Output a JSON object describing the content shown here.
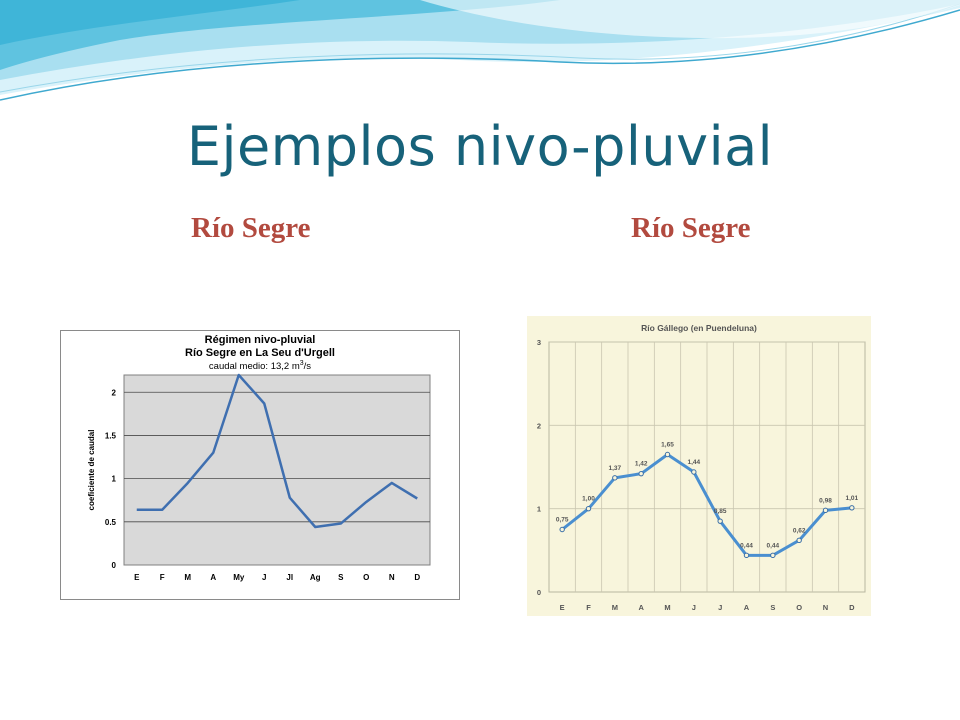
{
  "slide": {
    "title": "Ejemplos nivo-pluvial",
    "subtitle_left": "Río Segre",
    "subtitle_right": "Río Segre"
  },
  "colors": {
    "title": "#17627a",
    "subtitle": "#b24a3f",
    "wave_light": "#a9dff0",
    "wave_dark": "#3fb5d8",
    "line": "#3f6fb0"
  },
  "chart_data": [
    {
      "type": "line",
      "title": "Régimen nivo-pluvial",
      "subtitle": "Río Segre en La Seu d'Urgell",
      "note": "caudal medio: 13,2 m3/s",
      "note_main": "caudal medio: 13,2 m",
      "note_sup": "3",
      "note_tail": "/s",
      "ylabel": "coeficiente de caudal",
      "xlabel": "",
      "categories": [
        "E",
        "F",
        "M",
        "A",
        "My",
        "J",
        "Jl",
        "Ag",
        "S",
        "O",
        "N",
        "D"
      ],
      "yticks": [
        "0",
        "0.5",
        "1",
        "1.5",
        "2"
      ],
      "ylim": [
        0,
        2.2
      ],
      "grid": true,
      "series": [
        {
          "values": [
            0.64,
            0.64,
            0.95,
            1.3,
            2.2,
            1.87,
            0.78,
            0.44,
            0.48,
            0.73,
            0.95,
            0.77
          ]
        }
      ]
    },
    {
      "type": "line",
      "title": "Río Gállego (en Puendeluna)",
      "xlabel": "",
      "ylabel": "",
      "categories": [
        "E",
        "F",
        "M",
        "A",
        "M",
        "J",
        "J",
        "A",
        "S",
        "O",
        "N",
        "D"
      ],
      "yticks": [
        "0",
        "1",
        "2",
        "3"
      ],
      "ylim": [
        0,
        3
      ],
      "grid": true,
      "series": [
        {
          "values": [
            0.75,
            1.0,
            1.37,
            1.42,
            1.65,
            1.44,
            0.85,
            0.44,
            0.44,
            0.62,
            0.98,
            1.01
          ],
          "labels": [
            "0,75",
            "1,00",
            "1,37",
            "1,42",
            "1,65",
            "1,44",
            "0,85",
            "0,44",
            "0,44",
            "0,62",
            "0,98",
            "1,01"
          ]
        }
      ]
    }
  ]
}
